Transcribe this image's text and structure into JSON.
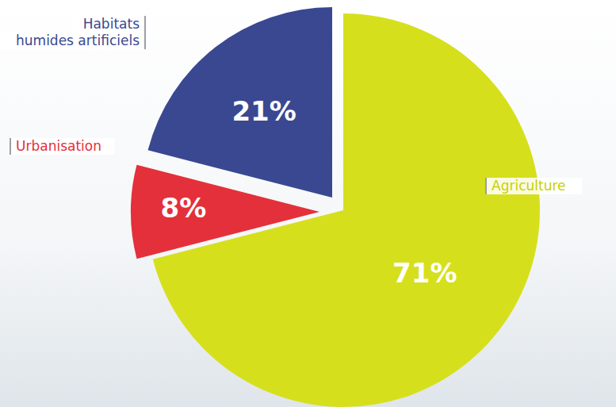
{
  "chart_data": {
    "type": "pie",
    "categories": [
      "Agriculture",
      "Urbanisation",
      "Habitats humides artificiels"
    ],
    "values": [
      71,
      8,
      21
    ],
    "value_labels": [
      "71%",
      "8%",
      "21%"
    ],
    "colors": [
      "#d6df1c",
      "#e4303a",
      "#3a4891"
    ],
    "data_labels": true
  }
}
